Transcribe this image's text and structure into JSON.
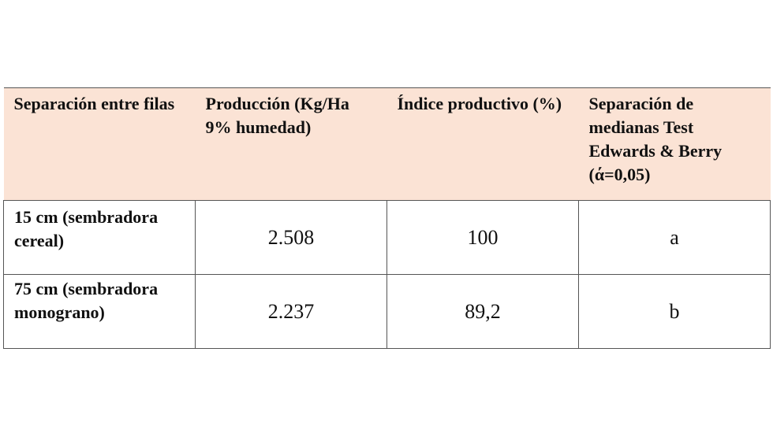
{
  "table": {
    "headers": [
      "Separación entre filas",
      "Producción (Kg/Ha 9% humedad)",
      "Índice productivo (%)",
      "Separación de medianas Test Edwards & Berry (ά=0,05)"
    ],
    "rows": [
      {
        "separacion": "15 cm (sembradora cereal)",
        "produccion": "2.508",
        "indice": "100",
        "grupo": "a"
      },
      {
        "separacion": "75 cm (sembradora monograno)",
        "produccion": "2.237",
        "indice": "89,2",
        "grupo": "b"
      }
    ],
    "header_background": "#fbe3d5",
    "border_color": "#555555"
  }
}
